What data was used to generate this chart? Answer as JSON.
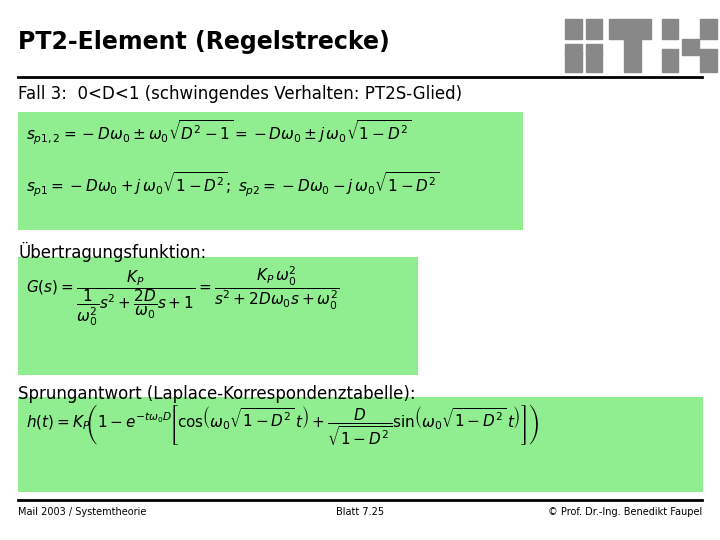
{
  "title": "PT2-Element (Regelstrecke)",
  "subtitle": "Fall 3:  0<D<1 (schwingendes Verhalten: PT2S-Glied)",
  "section1_label": "Übertragungsfunktion:",
  "section2_label": "Sprungantwort (Laplace-Korrespondenztabelle):",
  "footer_left": "Mail 2003 / Systemtheorie",
  "footer_center": "Blatt 7.25",
  "footer_right": "© Prof. Dr.-Ing. Benedikt Faupel",
  "bg_color": "#ffffff",
  "box_color": "#90EE90",
  "title_fontsize": 17,
  "subtitle_fontsize": 12,
  "label_fontsize": 12,
  "eq_fontsize": 11,
  "footer_fontsize": 7,
  "logo_color": "#888888"
}
